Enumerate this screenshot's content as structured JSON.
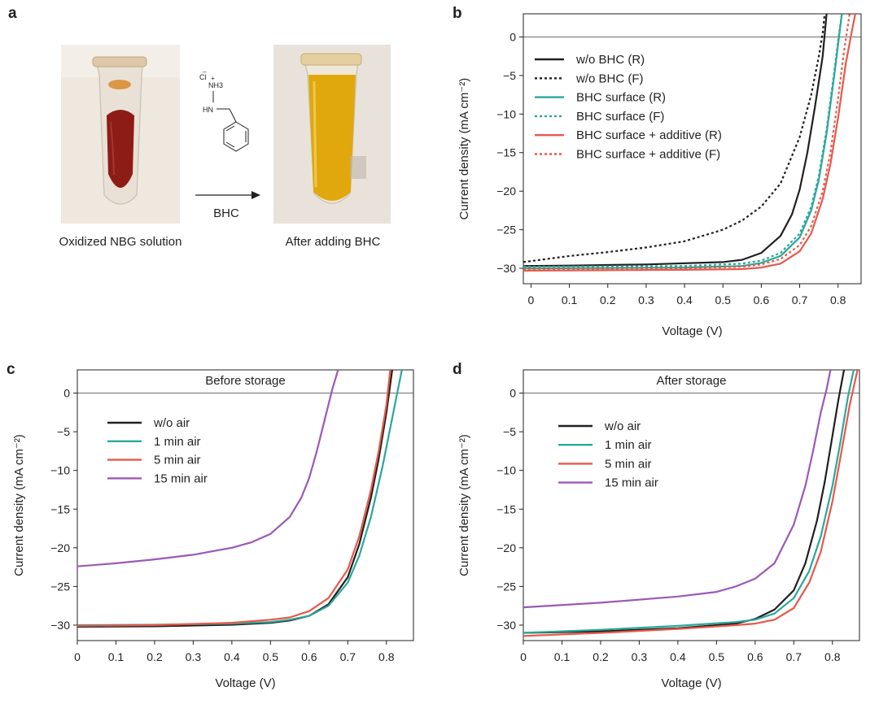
{
  "panel_a": {
    "panel_letter": "a",
    "left_caption": "Oxidized NBG solution",
    "right_caption": "After adding BHC",
    "arrow_label": "BHC",
    "molecule_labels": {
      "counter_ion": "Cl",
      "ammonium": "NH3",
      "amine": "HN"
    },
    "colors": {
      "red_solution": "#8e1c16",
      "yellow_solution": "#e0a80c",
      "photo_background": "#efe9e1"
    }
  },
  "chart_data": [
    {
      "id": "b",
      "panel_letter": "b",
      "type": "line",
      "title": "",
      "xlabel": "Voltage (V)",
      "ylabel": "Current density (mA cm⁻²)",
      "xlim": [
        -0.02,
        0.86
      ],
      "ylim": [
        -32,
        3
      ],
      "xticks": [
        0,
        0.1,
        0.2,
        0.3,
        0.4,
        0.5,
        0.6,
        0.7,
        0.8
      ],
      "yticks": [
        0,
        -5,
        -10,
        -15,
        -20,
        -25,
        -30
      ],
      "legend_position": "top-left",
      "series": [
        {
          "name": "w/o BHC (R)",
          "color": "#231f20",
          "dash": "solid",
          "x": [
            -0.02,
            0.1,
            0.3,
            0.5,
            0.55,
            0.6,
            0.65,
            0.68,
            0.7,
            0.72,
            0.74,
            0.76,
            0.77
          ],
          "y": [
            -29.7,
            -29.65,
            -29.5,
            -29.2,
            -28.9,
            -28.0,
            -25.8,
            -23.0,
            -19.8,
            -15.0,
            -9.0,
            -2.5,
            3.0
          ]
        },
        {
          "name": "w/o BHC (F)",
          "color": "#231f20",
          "dash": "dotted",
          "x": [
            -0.02,
            0.1,
            0.2,
            0.3,
            0.4,
            0.5,
            0.55,
            0.6,
            0.65,
            0.7,
            0.73,
            0.75,
            0.76,
            0.765
          ],
          "y": [
            -29.2,
            -28.4,
            -27.9,
            -27.3,
            -26.5,
            -25.0,
            -23.8,
            -22.0,
            -19.0,
            -13.0,
            -7.5,
            -2.5,
            0.5,
            3.0
          ]
        },
        {
          "name": "BHC surface (R)",
          "color": "#2aa89a",
          "dash": "solid",
          "x": [
            -0.02,
            0.2,
            0.4,
            0.55,
            0.6,
            0.65,
            0.7,
            0.73,
            0.75,
            0.77,
            0.79,
            0.8,
            0.81
          ],
          "y": [
            -30.0,
            -29.95,
            -29.9,
            -29.7,
            -29.3,
            -28.4,
            -26.0,
            -22.5,
            -18.5,
            -12.5,
            -5.0,
            -1.0,
            3.0
          ]
        },
        {
          "name": "BHC surface (F)",
          "color": "#2aa89a",
          "dash": "dotted",
          "x": [
            -0.02,
            0.2,
            0.4,
            0.55,
            0.6,
            0.65,
            0.7,
            0.73,
            0.75,
            0.77,
            0.79,
            0.8,
            0.81
          ],
          "y": [
            -29.8,
            -29.75,
            -29.7,
            -29.4,
            -29.0,
            -28.0,
            -25.5,
            -22.0,
            -18.0,
            -12.0,
            -4.5,
            -0.5,
            3.0
          ]
        },
        {
          "name": "BHC surface + additive (R)",
          "color": "#e8584a",
          "dash": "solid",
          "x": [
            -0.02,
            0.2,
            0.4,
            0.55,
            0.6,
            0.65,
            0.7,
            0.73,
            0.76,
            0.78,
            0.8,
            0.82,
            0.835,
            0.845
          ],
          "y": [
            -30.3,
            -30.25,
            -30.2,
            -30.1,
            -29.9,
            -29.4,
            -27.8,
            -25.5,
            -21.0,
            -16.5,
            -10.5,
            -3.5,
            0.5,
            3.0
          ]
        },
        {
          "name": "BHC surface + additive (F)",
          "color": "#e8584a",
          "dash": "dotted",
          "x": [
            -0.02,
            0.2,
            0.4,
            0.55,
            0.6,
            0.65,
            0.7,
            0.73,
            0.76,
            0.78,
            0.8,
            0.815,
            0.83
          ],
          "y": [
            -30.1,
            -30.05,
            -30.0,
            -29.8,
            -29.5,
            -28.8,
            -27.0,
            -24.5,
            -20.0,
            -15.0,
            -8.0,
            -2.0,
            3.0
          ]
        }
      ]
    },
    {
      "id": "c",
      "panel_letter": "c",
      "type": "line",
      "title": "Before storage",
      "xlabel": "Voltage (V)",
      "ylabel": "Current density (mA cm⁻²)",
      "xlim": [
        0,
        0.87
      ],
      "ylim": [
        -32,
        3
      ],
      "xticks": [
        0,
        0.1,
        0.2,
        0.3,
        0.4,
        0.5,
        0.6,
        0.7,
        0.8
      ],
      "yticks": [
        0,
        -5,
        -10,
        -15,
        -20,
        -25,
        -30
      ],
      "legend_position": "top-left",
      "series": [
        {
          "name": "w/o air",
          "color": "#231f20",
          "dash": "solid",
          "x": [
            0,
            0.2,
            0.4,
            0.5,
            0.55,
            0.6,
            0.65,
            0.7,
            0.73,
            0.76,
            0.78,
            0.8,
            0.815
          ],
          "y": [
            -30.2,
            -30.15,
            -29.95,
            -29.7,
            -29.4,
            -28.8,
            -27.3,
            -23.8,
            -19.5,
            -13.5,
            -8.5,
            -2.5,
            3.0
          ]
        },
        {
          "name": "1 min air",
          "color": "#2aa89a",
          "dash": "solid",
          "x": [
            0,
            0.2,
            0.4,
            0.5,
            0.55,
            0.6,
            0.65,
            0.7,
            0.73,
            0.76,
            0.79,
            0.81,
            0.83,
            0.84
          ],
          "y": [
            -30.0,
            -29.95,
            -29.8,
            -29.6,
            -29.3,
            -28.8,
            -27.5,
            -24.5,
            -21.0,
            -16.0,
            -9.5,
            -4.5,
            0.5,
            3.0
          ]
        },
        {
          "name": "5 min air",
          "color": "#e8584a",
          "dash": "solid",
          "x": [
            0,
            0.2,
            0.4,
            0.5,
            0.55,
            0.6,
            0.65,
            0.7,
            0.73,
            0.76,
            0.78,
            0.8,
            0.81
          ],
          "y": [
            -30.1,
            -30.0,
            -29.7,
            -29.3,
            -29.0,
            -28.2,
            -26.5,
            -22.8,
            -18.5,
            -12.5,
            -7.5,
            -1.5,
            3.0
          ]
        },
        {
          "name": "15 min air",
          "color": "#9b59b6",
          "dash": "solid",
          "x": [
            0,
            0.1,
            0.2,
            0.3,
            0.4,
            0.45,
            0.5,
            0.55,
            0.58,
            0.6,
            0.62,
            0.64,
            0.66,
            0.675
          ],
          "y": [
            -22.4,
            -22.0,
            -21.5,
            -20.9,
            -20.0,
            -19.3,
            -18.2,
            -16.0,
            -13.5,
            -11.0,
            -7.5,
            -3.5,
            0.5,
            3.0
          ]
        }
      ]
    },
    {
      "id": "d",
      "panel_letter": "d",
      "type": "line",
      "title": "After storage",
      "xlabel": "Voltage (V)",
      "ylabel": "Current density (mA cm⁻²)",
      "xlim": [
        0,
        0.87
      ],
      "ylim": [
        -32,
        3
      ],
      "xticks": [
        0,
        0.1,
        0.2,
        0.3,
        0.4,
        0.5,
        0.6,
        0.7,
        0.8
      ],
      "yticks": [
        0,
        -5,
        -10,
        -15,
        -20,
        -25,
        -30
      ],
      "legend_position": "top-left",
      "series": [
        {
          "name": "w/o air",
          "color": "#231f20",
          "dash": "solid",
          "x": [
            0,
            0.2,
            0.4,
            0.55,
            0.6,
            0.65,
            0.7,
            0.73,
            0.76,
            0.78,
            0.8,
            0.815,
            0.83
          ],
          "y": [
            -31.0,
            -30.8,
            -30.4,
            -29.8,
            -29.2,
            -28.0,
            -25.5,
            -22.0,
            -16.5,
            -11.5,
            -5.5,
            -1.0,
            3.0
          ]
        },
        {
          "name": "1 min air",
          "color": "#2aa89a",
          "dash": "solid",
          "x": [
            0,
            0.2,
            0.4,
            0.55,
            0.6,
            0.65,
            0.7,
            0.74,
            0.77,
            0.8,
            0.82,
            0.84,
            0.855
          ],
          "y": [
            -31.0,
            -30.6,
            -30.1,
            -29.6,
            -29.3,
            -28.5,
            -26.5,
            -23.0,
            -18.5,
            -12.0,
            -6.5,
            -0.5,
            3.0
          ]
        },
        {
          "name": "5 min air",
          "color": "#e8584a",
          "dash": "solid",
          "x": [
            0,
            0.2,
            0.4,
            0.55,
            0.6,
            0.65,
            0.7,
            0.74,
            0.77,
            0.8,
            0.82,
            0.845,
            0.865
          ],
          "y": [
            -31.4,
            -31.0,
            -30.5,
            -30.0,
            -29.8,
            -29.3,
            -27.8,
            -24.5,
            -20.5,
            -14.0,
            -8.5,
            -1.5,
            3.0
          ]
        },
        {
          "name": "15 min air",
          "color": "#9b59b6",
          "dash": "solid",
          "x": [
            0,
            0.2,
            0.4,
            0.5,
            0.55,
            0.6,
            0.65,
            0.7,
            0.73,
            0.75,
            0.77,
            0.785,
            0.795
          ],
          "y": [
            -27.7,
            -27.1,
            -26.3,
            -25.7,
            -25.0,
            -24.0,
            -22.0,
            -17.0,
            -12.0,
            -7.5,
            -2.5,
            0.5,
            3.0
          ]
        }
      ]
    }
  ]
}
